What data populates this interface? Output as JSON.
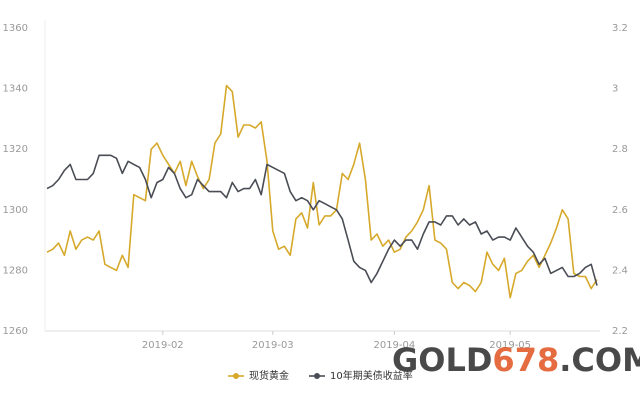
{
  "chart_data": {
    "type": "line",
    "categories": [
      null,
      null,
      null,
      null,
      null,
      null,
      null,
      null,
      null,
      null,
      null,
      null,
      null,
      null,
      null,
      null,
      null,
      null,
      null,
      null,
      "2019-02",
      null,
      null,
      null,
      null,
      null,
      null,
      null,
      null,
      null,
      null,
      null,
      null,
      null,
      null,
      null,
      null,
      null,
      null,
      "2019-03",
      null,
      null,
      null,
      null,
      null,
      null,
      null,
      null,
      null,
      null,
      null,
      null,
      null,
      null,
      null,
      null,
      null,
      null,
      null,
      null,
      "2019-04",
      null,
      null,
      null,
      null,
      null,
      null,
      null,
      null,
      null,
      null,
      null,
      null,
      null,
      null,
      null,
      null,
      null,
      null,
      null,
      "2019-05",
      null,
      null,
      null,
      null,
      null,
      null,
      null,
      null,
      null,
      null,
      null,
      null,
      null,
      null,
      null
    ],
    "series": [
      {
        "name": "现货黄金",
        "color": "#d6a92b",
        "values": [
          1286,
          1287,
          1289,
          1285,
          1293,
          1287,
          1290,
          1291,
          1290,
          1293,
          1282,
          1281,
          1280,
          1285,
          1281,
          1305,
          1304,
          1303,
          1320,
          1322,
          1318,
          1315,
          1312,
          1316,
          1308,
          1316,
          1311,
          1307,
          1310,
          1322,
          1325,
          1341,
          1339,
          1324,
          1328,
          1328,
          1327,
          1329,
          1316,
          1293,
          1287,
          1288,
          1285,
          1297,
          1299,
          1294,
          1309,
          1295,
          1298,
          1298,
          1300,
          1312,
          1310,
          1315,
          1322,
          1310,
          1290,
          1292,
          1288,
          1290,
          1286,
          1287,
          1291,
          1293,
          1296,
          1300,
          1308,
          1290,
          1289,
          1287,
          1276,
          1274,
          1276,
          1275,
          1273,
          1276,
          1286,
          1282,
          1280,
          1284,
          1271,
          1279,
          1280,
          1283,
          1285,
          1281,
          1285,
          1289,
          1294,
          1300,
          1297,
          1279,
          1278,
          1278,
          1274,
          1277
        ]
      },
      {
        "name": "10年期美债收益率",
        "color": "#4a4d55",
        "axis": "y2",
        "values": [
          2.67,
          2.68,
          2.7,
          2.73,
          2.75,
          2.7,
          2.7,
          2.7,
          2.72,
          2.78,
          2.78,
          2.78,
          2.77,
          2.72,
          2.76,
          2.75,
          2.74,
          2.7,
          2.64,
          2.69,
          2.7,
          2.74,
          2.72,
          2.67,
          2.64,
          2.65,
          2.7,
          2.68,
          2.66,
          2.66,
          2.66,
          2.64,
          2.69,
          2.66,
          2.67,
          2.67,
          2.7,
          2.65,
          2.75,
          2.74,
          2.73,
          2.72,
          2.66,
          2.63,
          2.64,
          2.63,
          2.6,
          2.63,
          2.62,
          2.61,
          2.6,
          2.57,
          2.5,
          2.43,
          2.41,
          2.4,
          2.36,
          2.39,
          2.43,
          2.47,
          2.5,
          2.48,
          2.5,
          2.5,
          2.47,
          2.52,
          2.56,
          2.56,
          2.55,
          2.58,
          2.58,
          2.55,
          2.57,
          2.55,
          2.56,
          2.52,
          2.53,
          2.5,
          2.51,
          2.51,
          2.5,
          2.54,
          2.51,
          2.48,
          2.46,
          2.42,
          2.44,
          2.39,
          2.4,
          2.41,
          2.38,
          2.38,
          2.39,
          2.41,
          2.42,
          2.35
        ]
      }
    ],
    "ylim": [
      1260,
      1360
    ],
    "yticks": [
      1260,
      1280,
      1300,
      1320,
      1340,
      1360
    ],
    "y2lim": [
      2.2,
      3.2
    ],
    "y2ticks": [
      2.2,
      2.4,
      2.6,
      2.8,
      3,
      3.2
    ],
    "grid": false,
    "legend": "bottom",
    "watermark": [
      "GOLD",
      "678",
      ".COM"
    ]
  }
}
